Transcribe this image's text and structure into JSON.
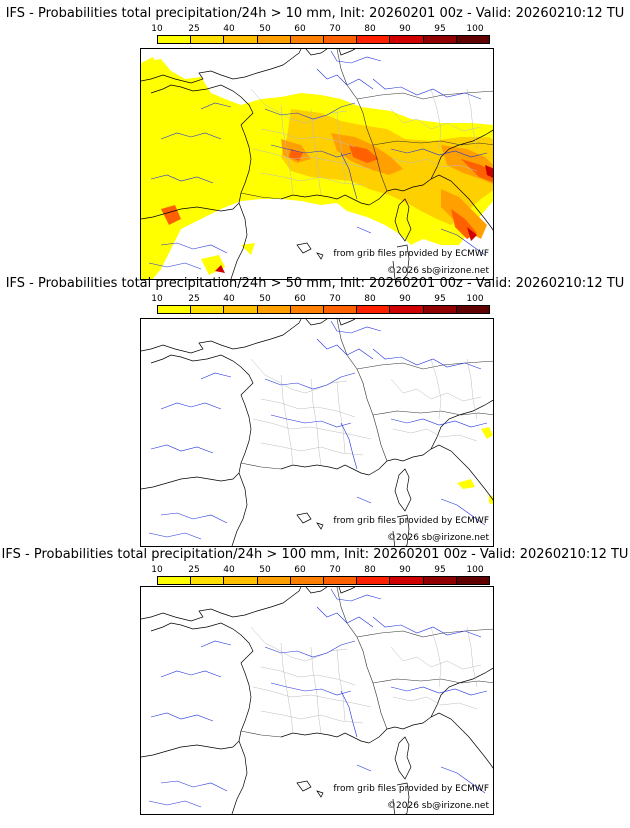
{
  "legend": {
    "ticks": [
      "10",
      "25",
      "40",
      "50",
      "60",
      "70",
      "80",
      "90",
      "95",
      "100"
    ],
    "colors": [
      "#ffff00",
      "#ffe000",
      "#ffc000",
      "#ffa000",
      "#ff8000",
      "#ff6000",
      "#ff2000",
      "#d00000",
      "#900000",
      "#600000"
    ]
  },
  "panels": [
    {
      "title": "IFS - Probabilities total precipitation/24h > 10 mm, Init: 20260201 00z - Valid: 20260210:12 TU",
      "threshold_mm": 10,
      "credit_source": "from grib files provided by ECMWF",
      "credit_copyright": "©2026 sb@irizone.net"
    },
    {
      "title": "IFS - Probabilities total precipitation/24h > 50 mm, Init: 20260201 00z - Valid: 20260210:12 TU",
      "threshold_mm": 50,
      "credit_source": "from grib files provided by ECMWF",
      "credit_copyright": "©2026 sb@irizone.net"
    },
    {
      "title": "IFS - Probabilities total precipitation/24h > 100 mm, Init: 20260201 00z - Valid: 20260210:12 TU",
      "threshold_mm": 100,
      "credit_source": "from grib files provided by ECMWF",
      "credit_copyright": "©2026 sb@irizone.net"
    }
  ]
}
